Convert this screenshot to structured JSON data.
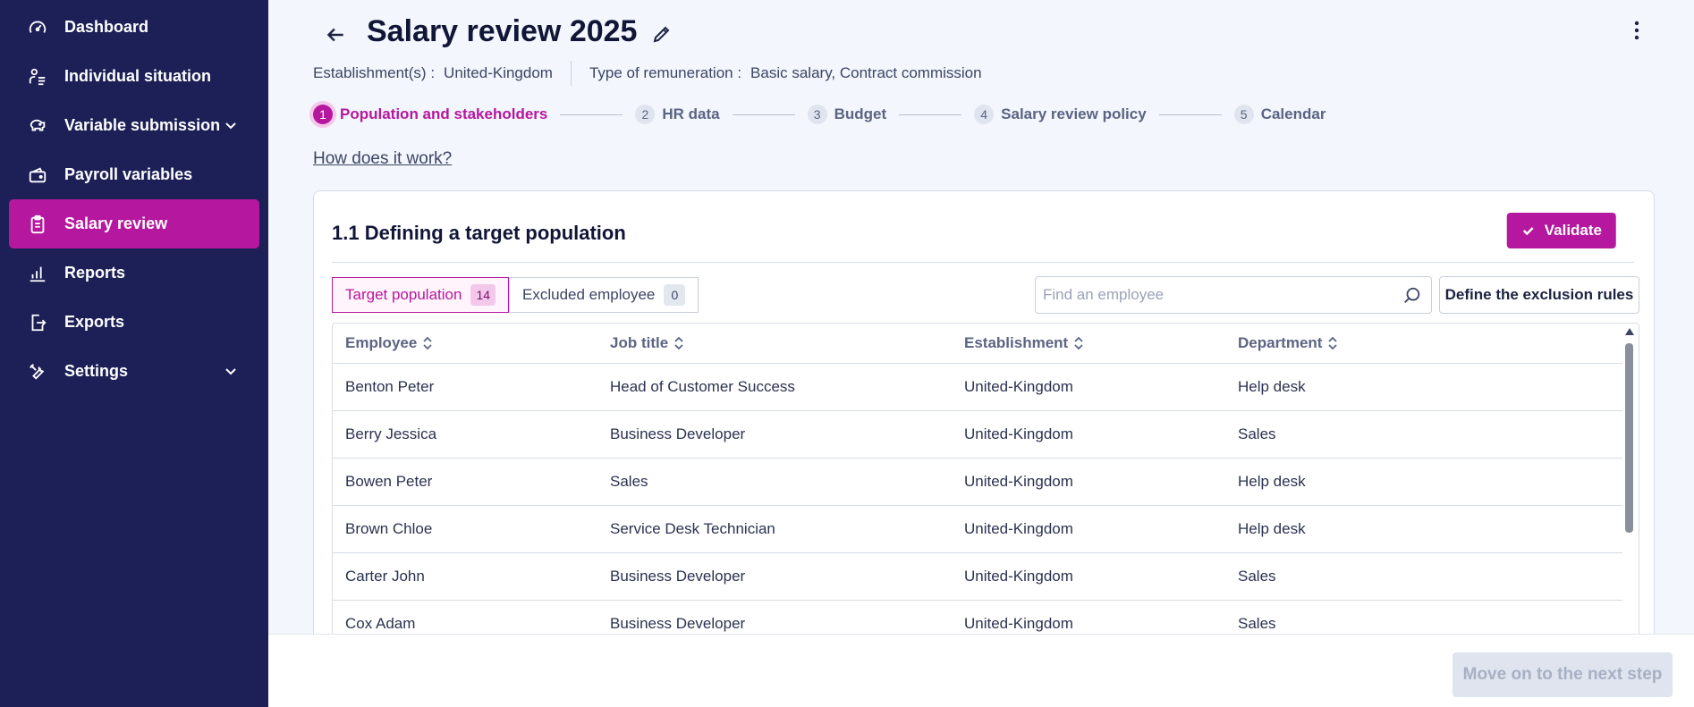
{
  "sidebar": {
    "items": [
      {
        "label": "Dashboard",
        "icon": "gauge-icon"
      },
      {
        "label": "Individual situation",
        "icon": "person-list-icon"
      },
      {
        "label": "Variable submission",
        "icon": "piggy-bank-icon",
        "expandable": true
      },
      {
        "label": "Payroll variables",
        "icon": "wallet-icon"
      },
      {
        "label": "Salary review",
        "icon": "clipboard-icon",
        "active": true
      },
      {
        "label": "Reports",
        "icon": "bar-chart-icon"
      },
      {
        "label": "Exports",
        "icon": "export-icon"
      },
      {
        "label": "Settings",
        "icon": "tools-icon",
        "expandable": true
      }
    ]
  },
  "header": {
    "title": "Salary review 2025",
    "establishment_label": "Establishment(s) :",
    "establishment_value": "United-Kingdom",
    "remuneration_label": "Type of remuneration :",
    "remuneration_value": "Basic salary, Contract commission"
  },
  "stepper": {
    "steps": [
      {
        "num": "1",
        "label": "Population and stakeholders",
        "active": true
      },
      {
        "num": "2",
        "label": "HR data"
      },
      {
        "num": "3",
        "label": "Budget"
      },
      {
        "num": "4",
        "label": "Salary review policy"
      },
      {
        "num": "5",
        "label": "Calendar"
      }
    ]
  },
  "help_link": "How does it work?",
  "card": {
    "title": "1.1 Defining a target population",
    "validate_label": "Validate",
    "tabs": [
      {
        "label": "Target population",
        "count": "14"
      },
      {
        "label": "Excluded employee",
        "count": "0"
      }
    ],
    "search_placeholder": "Find an employee",
    "rules_button": "Define the exclusion rules",
    "columns": [
      "Employee",
      "Job title",
      "Establishment",
      "Department"
    ],
    "rows": [
      [
        "Benton Peter",
        "Head of Customer Success",
        "United-Kingdom",
        "Help desk"
      ],
      [
        "Berry Jessica",
        "Business Developer",
        "United-Kingdom",
        "Sales"
      ],
      [
        "Bowen Peter",
        "Sales",
        "United-Kingdom",
        "Help desk"
      ],
      [
        "Brown Chloe",
        "Service Desk Technician",
        "United-Kingdom",
        "Help desk"
      ],
      [
        "Carter John",
        "Business Developer",
        "United-Kingdom",
        "Sales"
      ],
      [
        "Cox Adam",
        "Business Developer",
        "United-Kingdom",
        "Sales"
      ]
    ]
  },
  "footer": {
    "next_button": "Move on to the next step"
  },
  "colors": {
    "sidebar_bg": "#1c2057",
    "accent": "#b5179e",
    "page_bg": "#f3f6fc"
  }
}
